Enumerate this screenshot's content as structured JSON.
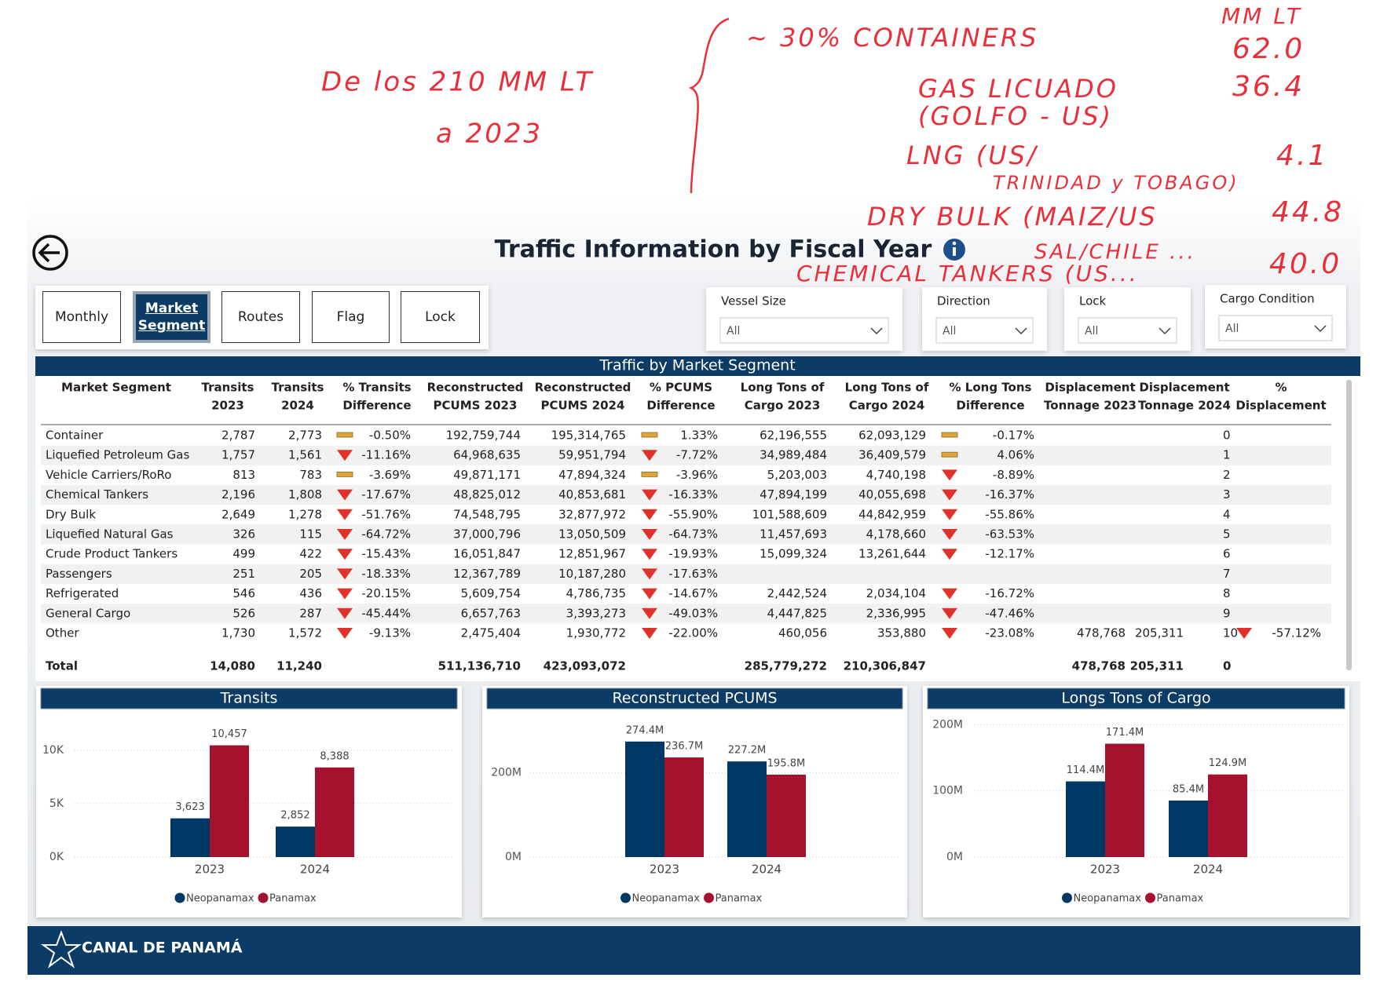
{
  "annotations": [
    "De los 210 MM LT",
    "a 2023",
    "~ 30% CONTAINERS",
    "GAS LICUADO",
    "(GOLFO - US)",
    "LNG (US/",
    "TRINIDAD y TOBAGO)",
    "DRY BULK (MAIZ/US",
    "SAL/CHILE ...",
    "CHEMICAL TANKERS (US...",
    "MM LT",
    "62.0",
    "36.4",
    "4.1",
    "44.8",
    "40.0"
  ],
  "header": {
    "title": "Traffic Information by Fiscal Year",
    "tabs": [
      "Monthly",
      "Market Segment",
      "Routes",
      "Flag",
      "Lock"
    ],
    "active_tab": 1
  },
  "filters": [
    {
      "label": "Vessel Size",
      "value": "All"
    },
    {
      "label": "Direction",
      "value": "All"
    },
    {
      "label": "Lock",
      "value": "All"
    },
    {
      "label": "Cargo Condition",
      "value": "All"
    }
  ],
  "table": {
    "title": "Traffic by Market Segment",
    "columns": [
      [
        "Market Segment"
      ],
      [
        "Transits",
        "2023"
      ],
      [
        "Transits",
        "2024"
      ],
      [
        "% Transits",
        "Difference"
      ],
      [
        "Reconstructed",
        "PCUMS 2023"
      ],
      [
        "Reconstructed",
        "PCUMS 2024"
      ],
      [
        "% PCUMS",
        "Difference"
      ],
      [
        "Long Tons of",
        "Cargo 2023"
      ],
      [
        "Long Tons of",
        "Cargo 2024"
      ],
      [
        "% Long Tons",
        "Difference"
      ],
      [
        "Displacement",
        "Tonnage 2023"
      ],
      [
        "Displacement",
        "Tonnage 2024"
      ],
      [
        "%",
        "Displacement"
      ]
    ],
    "rows": [
      [
        "Container",
        "2,787",
        "2,773",
        {
          "text": "-0.50%",
          "icon": "flat"
        },
        "192,759,744",
        "195,314,765",
        {
          "text": "1.33%",
          "icon": "flat"
        },
        "62,196,555",
        "62,093,129",
        {
          "text": "-0.17%",
          "icon": "flat"
        },
        null,
        null,
        "0",
        null
      ],
      [
        "Liquefied Petroleum Gas",
        "1,757",
        "1,561",
        {
          "text": "-11.16%",
          "icon": "down"
        },
        "64,968,635",
        "59,951,794",
        {
          "text": "-7.72%",
          "icon": "down"
        },
        "34,989,484",
        "36,409,579",
        {
          "text": "4.06%",
          "icon": "flat"
        },
        null,
        null,
        "1",
        null
      ],
      [
        "Vehicle Carriers/RoRo",
        "813",
        "783",
        {
          "text": "-3.69%",
          "icon": "flat"
        },
        "49,871,171",
        "47,894,324",
        {
          "text": "-3.96%",
          "icon": "flat"
        },
        "5,203,003",
        "4,740,198",
        {
          "text": "-8.89%",
          "icon": "down"
        },
        null,
        null,
        "2",
        null
      ],
      [
        "Chemical Tankers",
        "2,196",
        "1,808",
        {
          "text": "-17.67%",
          "icon": "down"
        },
        "48,825,012",
        "40,853,681",
        {
          "text": "-16.33%",
          "icon": "down"
        },
        "47,894,199",
        "40,055,698",
        {
          "text": "-16.37%",
          "icon": "down"
        },
        null,
        null,
        "3",
        null
      ],
      [
        "Dry Bulk",
        "2,649",
        "1,278",
        {
          "text": "-51.76%",
          "icon": "down"
        },
        "74,548,795",
        "32,877,972",
        {
          "text": "-55.90%",
          "icon": "down"
        },
        "101,588,609",
        "44,842,959",
        {
          "text": "-55.86%",
          "icon": "down"
        },
        null,
        null,
        "4",
        null
      ],
      [
        "Liquefied Natural Gas",
        "326",
        "115",
        {
          "text": "-64.72%",
          "icon": "down"
        },
        "37,000,796",
        "13,050,509",
        {
          "text": "-64.73%",
          "icon": "down"
        },
        "11,457,693",
        "4,178,660",
        {
          "text": "-63.53%",
          "icon": "down"
        },
        null,
        null,
        "5",
        null
      ],
      [
        "Crude Product Tankers",
        "499",
        "422",
        {
          "text": "-15.43%",
          "icon": "down"
        },
        "16,051,847",
        "12,851,967",
        {
          "text": "-19.93%",
          "icon": "down"
        },
        "15,099,324",
        "13,261,644",
        {
          "text": "-12.17%",
          "icon": "down"
        },
        null,
        null,
        "6",
        null
      ],
      [
        "Passengers",
        "251",
        "205",
        {
          "text": "-18.33%",
          "icon": "down"
        },
        "12,367,789",
        "10,187,280",
        {
          "text": "-17.63%",
          "icon": "down"
        },
        null,
        null,
        null,
        null,
        null,
        "7",
        null
      ],
      [
        "Refrigerated",
        "546",
        "436",
        {
          "text": "-20.15%",
          "icon": "down"
        },
        "5,609,754",
        "4,786,735",
        {
          "text": "-14.67%",
          "icon": "down"
        },
        "2,442,524",
        "2,034,104",
        {
          "text": "-16.72%",
          "icon": "down"
        },
        null,
        null,
        "8",
        null
      ],
      [
        "General Cargo",
        "526",
        "287",
        {
          "text": "-45.44%",
          "icon": "down"
        },
        "6,657,763",
        "3,393,273",
        {
          "text": "-49.03%",
          "icon": "down"
        },
        "4,447,825",
        "2,336,995",
        {
          "text": "-47.46%",
          "icon": "down"
        },
        null,
        null,
        "9",
        null
      ],
      [
        "Other",
        "1,730",
        "1,572",
        {
          "text": "-9.13%",
          "icon": "down"
        },
        "2,475,404",
        "1,930,772",
        {
          "text": "-22.00%",
          "icon": "down"
        },
        "460,056",
        "353,880",
        {
          "text": "-23.08%",
          "icon": "down"
        },
        "478,768",
        "205,311",
        "10",
        {
          "text": "-57.12%",
          "icon": "down"
        }
      ]
    ],
    "total": [
      "Total",
      "14,080",
      "11,240",
      null,
      "511,136,710",
      "423,093,072",
      null,
      "285,779,272",
      "210,306,847",
      null,
      "478,768",
      "205,311",
      "0",
      null
    ]
  },
  "chart_data": [
    {
      "type": "bar",
      "title": "Transits",
      "categories": [
        "2023",
        "2024"
      ],
      "series": [
        {
          "name": "Neopanamax",
          "color": "#003865",
          "values": [
            3623,
            2852
          ],
          "value_labels": [
            "3,623",
            "2,852"
          ]
        },
        {
          "name": "Panamax",
          "color": "#a6122d",
          "values": [
            10457,
            8388
          ],
          "value_labels": [
            "10,457",
            "8,388"
          ]
        }
      ],
      "ylim": [
        0,
        13000
      ],
      "yticks": [
        {
          "value": 0,
          "label": "0K"
        },
        {
          "value": 5000,
          "label": "5K"
        },
        {
          "value": 10000,
          "label": "10K"
        }
      ],
      "grid": true
    },
    {
      "type": "bar",
      "title": "Reconstructed PCUMS",
      "categories": [
        "2023",
        "2024"
      ],
      "series": [
        {
          "name": "Neopanamax",
          "color": "#003865",
          "values": [
            274400000,
            227200000
          ],
          "value_labels": [
            "274.4M",
            "227.2M"
          ]
        },
        {
          "name": "Panamax",
          "color": "#a6122d",
          "values": [
            236700000,
            195800000
          ],
          "value_labels": [
            "236.7M",
            "195.8M"
          ]
        }
      ],
      "ylim": [
        0,
        330000000
      ],
      "yticks": [
        {
          "value": 0,
          "label": "0M"
        },
        {
          "value": 200000000,
          "label": "200M"
        }
      ],
      "grid": true
    },
    {
      "type": "bar",
      "title": "Longs Tons of Cargo",
      "categories": [
        "2023",
        "2024"
      ],
      "series": [
        {
          "name": "Neopanamax",
          "color": "#003865",
          "values": [
            114400000,
            85400000
          ],
          "value_labels": [
            "114.4M",
            "85.4M"
          ]
        },
        {
          "name": "Panamax",
          "color": "#a6122d",
          "values": [
            171400000,
            124900000
          ],
          "value_labels": [
            "171.4M",
            "124.9M"
          ]
        }
      ],
      "ylim": [
        0,
        210000000
      ],
      "yticks": [
        {
          "value": 0,
          "label": "0M"
        },
        {
          "value": 100000000,
          "label": "100M"
        },
        {
          "value": 200000000,
          "label": "200M"
        }
      ],
      "grid": true
    }
  ],
  "footer": {
    "brand": "CANAL DE PANAMÁ"
  }
}
